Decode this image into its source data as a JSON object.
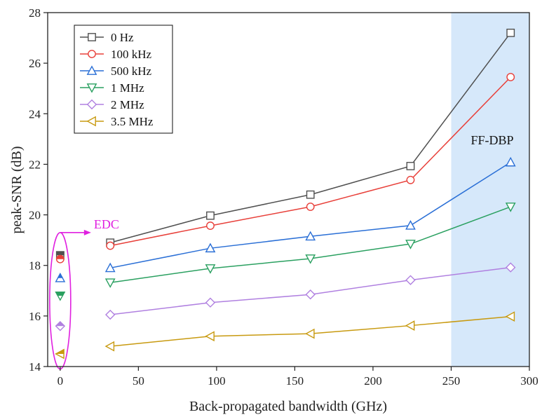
{
  "chart_data": {
    "type": "line",
    "xlabel": "Back-propagated bandwidth (GHz)",
    "ylabel": "peak-SNR (dB)",
    "xlim": [
      -8,
      300
    ],
    "ylim": [
      14,
      28
    ],
    "xticks": [
      0,
      50,
      100,
      150,
      200,
      250,
      300
    ],
    "yticks": [
      14,
      16,
      18,
      20,
      22,
      24,
      26,
      28
    ],
    "grid": false,
    "legend_position": "top-left",
    "x": [
      32,
      96,
      160,
      224,
      288
    ],
    "series": [
      {
        "name": "0 Hz",
        "color": "#505050",
        "marker": "square",
        "edc": 18.4,
        "values": [
          18.9,
          19.97,
          20.8,
          21.93,
          27.2
        ]
      },
      {
        "name": "100 kHz",
        "color": "#e8403a",
        "marker": "circle",
        "edc": 18.25,
        "values": [
          18.78,
          19.57,
          20.32,
          21.38,
          25.45
        ]
      },
      {
        "name": "500 kHz",
        "color": "#2a6fd6",
        "marker": "triangle-up",
        "edc": 17.5,
        "values": [
          17.9,
          18.68,
          19.15,
          19.58,
          22.08
        ]
      },
      {
        "name": "1 MHz",
        "color": "#2aa060",
        "marker": "triangle-down",
        "edc": 16.8,
        "values": [
          17.32,
          17.88,
          18.27,
          18.85,
          20.32
        ]
      },
      {
        "name": "2 MHz",
        "color": "#b080e0",
        "marker": "diamond",
        "edc": 15.6,
        "values": [
          16.05,
          16.53,
          16.85,
          17.42,
          17.92
        ]
      },
      {
        "name": "3.5 MHz",
        "color": "#c89a10",
        "marker": "triangle-left",
        "edc": 14.5,
        "values": [
          14.8,
          15.2,
          15.3,
          15.62,
          15.98
        ]
      }
    ],
    "annotations": {
      "edc_label": "EDC",
      "edc_color": "#e020e0",
      "ffdbp_label": "FF-DBP",
      "ffdbp_region": [
        250,
        300
      ],
      "ffdbp_color": "#d6e8fa"
    }
  }
}
